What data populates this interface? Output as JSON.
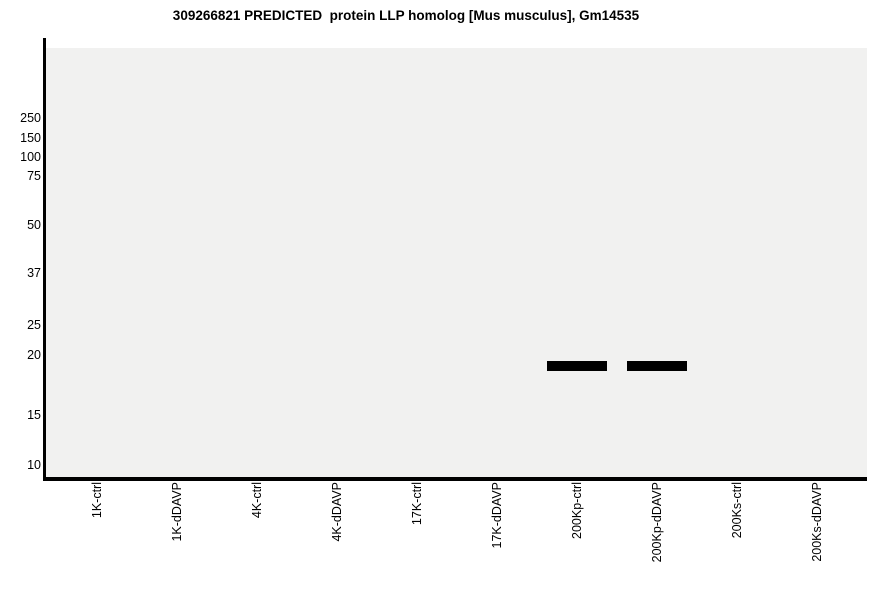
{
  "chart_data": {
    "type": "scatter",
    "subtype": "virtual-western-blot-gel",
    "title": "309266821 PREDICTED  protein LLP homolog [Mus musculus], Gm14535",
    "xlabel": "",
    "ylabel": "",
    "x_categories": [
      "1K-ctrl",
      "1K-dDAVP",
      "4K-ctrl",
      "4K-dDAVP",
      "17K-ctrl",
      "17K-dDAVP",
      "200Kp-ctrl",
      "200Kp-dDAVP",
      "200Ks-ctrl",
      "200Ks-dDAVP"
    ],
    "y_tick_labels": [
      "250",
      "150",
      "100",
      "75",
      "50",
      "37",
      "25",
      "20",
      "15",
      "10"
    ],
    "y_axis_units": "kDa molecular weight ladder, non-linear gel-migration scale",
    "grid": false,
    "legend": false,
    "bands": [
      {
        "lane": "200Kp-ctrl",
        "mw_kda": 19
      },
      {
        "lane": "200Kp-dDAVP",
        "mw_kda": 19
      }
    ],
    "colors": {
      "band": "#000000",
      "axis": "#000000",
      "plot_background": "#f1f1f0",
      "page_background": "#ffffff",
      "text": "#000000"
    }
  }
}
